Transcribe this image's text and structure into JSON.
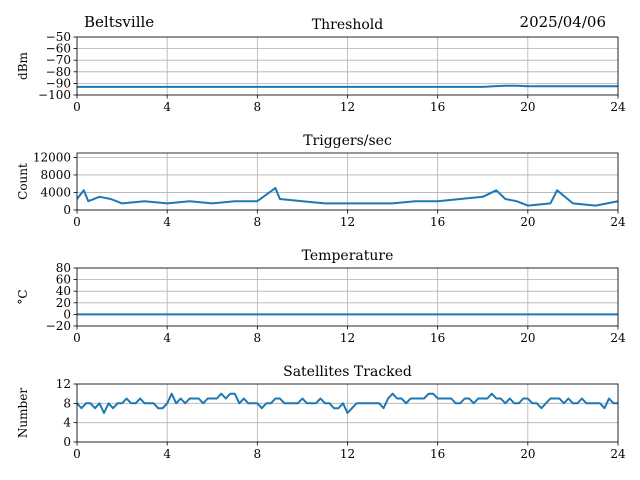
{
  "header": {
    "station": "Beltsville",
    "date": "2025/04/06"
  },
  "style": {
    "line_color": "#1f77b4",
    "grid_color": "#b0b0b0"
  },
  "chart_data": [
    {
      "type": "line",
      "title": "Threshold",
      "ylabel": "dBm",
      "xlim": [
        0,
        24
      ],
      "ylim": [
        -100,
        -50
      ],
      "xticks": [
        0,
        4,
        8,
        12,
        16,
        20,
        24
      ],
      "xtick_labels": [
        "0",
        "4",
        "8",
        "12",
        "16",
        "20",
        "24"
      ],
      "yticks": [
        -100,
        -90,
        -80,
        -70,
        -60,
        -50
      ],
      "ytick_labels": [
        "−100",
        "−90",
        "−80",
        "−70",
        "−60",
        "−50"
      ],
      "grid": true,
      "series": [
        {
          "x": [
            0,
            2,
            4,
            6,
            8,
            10,
            12,
            14,
            16,
            17,
            18,
            18.5,
            19,
            19.5,
            20,
            21,
            22,
            23,
            24
          ],
          "y": [
            -93,
            -93,
            -93,
            -93,
            -93,
            -93,
            -93,
            -93,
            -93,
            -93,
            -93,
            -92.5,
            -92,
            -92,
            -92.5,
            -92.5,
            -92.5,
            -92.5,
            -92.5
          ]
        }
      ]
    },
    {
      "type": "line",
      "title": "Triggers/sec",
      "ylabel": "Count",
      "xlim": [
        0,
        24
      ],
      "ylim": [
        0,
        13000
      ],
      "xticks": [
        0,
        4,
        8,
        12,
        16,
        20,
        24
      ],
      "xtick_labels": [
        "0",
        "4",
        "8",
        "12",
        "16",
        "20",
        "24"
      ],
      "yticks": [
        0,
        4000,
        8000,
        12000
      ],
      "ytick_labels": [
        "0",
        "4000",
        "8000",
        "12000"
      ],
      "grid": true,
      "series": [
        {
          "x": [
            0,
            0.3,
            0.5,
            1,
            1.5,
            2,
            3,
            4,
            5,
            6,
            7,
            8,
            8.8,
            9,
            10,
            11,
            12,
            13,
            14,
            15,
            16,
            17,
            18,
            18.6,
            19,
            19.5,
            20,
            21,
            21.3,
            22,
            23,
            24
          ],
          "y": [
            2500,
            4500,
            2000,
            3000,
            2500,
            1500,
            2000,
            1500,
            2000,
            1500,
            2000,
            2000,
            5000,
            2500,
            2000,
            1500,
            1500,
            1500,
            1500,
            2000,
            2000,
            2500,
            3000,
            4500,
            2500,
            2000,
            1000,
            1500,
            4500,
            1500,
            1000,
            2000
          ]
        }
      ]
    },
    {
      "type": "line",
      "title": "Temperature",
      "ylabel": "°C",
      "xlim": [
        0,
        24
      ],
      "ylim": [
        -20,
        80
      ],
      "xticks": [
        0,
        4,
        8,
        12,
        16,
        20,
        24
      ],
      "xtick_labels": [
        "0",
        "4",
        "8",
        "12",
        "16",
        "20",
        "24"
      ],
      "yticks": [
        -20,
        0,
        20,
        40,
        60,
        80
      ],
      "ytick_labels": [
        "−20",
        "0",
        "20",
        "40",
        "60",
        "80"
      ],
      "grid": true,
      "series": [
        {
          "x": [
            0,
            24
          ],
          "y": [
            0,
            0
          ]
        }
      ]
    },
    {
      "type": "line",
      "title": "Satellites Tracked",
      "ylabel": "Number",
      "xlim": [
        0,
        24
      ],
      "ylim": [
        0,
        12
      ],
      "xticks": [
        0,
        4,
        8,
        12,
        16,
        20,
        24
      ],
      "xtick_labels": [
        "0",
        "4",
        "8",
        "12",
        "16",
        "20",
        "24"
      ],
      "yticks": [
        0,
        4,
        8,
        12
      ],
      "ytick_labels": [
        "0",
        "4",
        "8",
        "12"
      ],
      "grid": true,
      "series": [
        {
          "x": [
            0,
            0.2,
            0.4,
            0.6,
            0.8,
            1.0,
            1.2,
            1.4,
            1.6,
            1.8,
            2.0,
            2.2,
            2.4,
            2.6,
            2.8,
            3.0,
            3.2,
            3.4,
            3.6,
            3.8,
            4.0,
            4.2,
            4.4,
            4.6,
            4.8,
            5.0,
            5.2,
            5.4,
            5.6,
            5.8,
            6.0,
            6.2,
            6.4,
            6.6,
            6.8,
            7.0,
            7.2,
            7.4,
            7.6,
            7.8,
            8.0,
            8.2,
            8.4,
            8.6,
            8.8,
            9.0,
            9.2,
            9.4,
            9.6,
            9.8,
            10.0,
            10.2,
            10.4,
            10.6,
            10.8,
            11.0,
            11.2,
            11.4,
            11.6,
            11.8,
            12.0,
            12.2,
            12.4,
            12.6,
            12.8,
            13.0,
            13.2,
            13.4,
            13.6,
            13.8,
            14.0,
            14.2,
            14.4,
            14.6,
            14.8,
            15.0,
            15.2,
            15.4,
            15.6,
            15.8,
            16.0,
            16.2,
            16.4,
            16.6,
            16.8,
            17.0,
            17.2,
            17.4,
            17.6,
            17.8,
            18.0,
            18.2,
            18.4,
            18.6,
            18.8,
            19.0,
            19.2,
            19.4,
            19.6,
            19.8,
            20.0,
            20.2,
            20.4,
            20.6,
            20.8,
            21.0,
            21.2,
            21.4,
            21.6,
            21.8,
            22.0,
            22.2,
            22.4,
            22.6,
            22.8,
            23.0,
            23.2,
            23.4,
            23.6,
            23.8,
            24.0
          ],
          "y": [
            8,
            7,
            8,
            8,
            7,
            8,
            6,
            8,
            7,
            8,
            8,
            9,
            8,
            8,
            9,
            8,
            8,
            8,
            7,
            7,
            8,
            10,
            8,
            9,
            8,
            9,
            9,
            9,
            8,
            9,
            9,
            9,
            10,
            9,
            10,
            10,
            8,
            9,
            8,
            8,
            8,
            7,
            8,
            8,
            9,
            9,
            8,
            8,
            8,
            8,
            9,
            8,
            8,
            8,
            9,
            8,
            8,
            7,
            7,
            8,
            6,
            7,
            8,
            8,
            8,
            8,
            8,
            8,
            7,
            9,
            10,
            9,
            9,
            8,
            9,
            9,
            9,
            9,
            10,
            10,
            9,
            9,
            9,
            9,
            8,
            8,
            9,
            9,
            8,
            9,
            9,
            9,
            10,
            9,
            9,
            8,
            9,
            8,
            8,
            9,
            9,
            8,
            8,
            7,
            8,
            9,
            9,
            9,
            8,
            9,
            8,
            8,
            9,
            8,
            8,
            8,
            8,
            7,
            9,
            8,
            8
          ]
        }
      ]
    }
  ]
}
